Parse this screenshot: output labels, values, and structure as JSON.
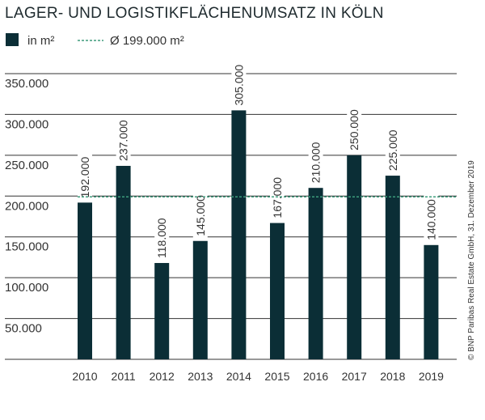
{
  "chart_data": {
    "type": "bar",
    "title": "LAGER- UND LOGISTIKFLÄCHENUMSATZ IN KÖLN",
    "legend": {
      "series_label": "in m²",
      "average_label": "Ø 199.000 m²",
      "placement": "top-left"
    },
    "categories": [
      "2010",
      "2011",
      "2012",
      "2013",
      "2014",
      "2015",
      "2016",
      "2017",
      "2018",
      "2019"
    ],
    "values": [
      192000,
      237000,
      118000,
      145000,
      305000,
      167000,
      210000,
      250000,
      225000,
      140000
    ],
    "value_labels": [
      "192.000",
      "237.000",
      "118.000",
      "145.000",
      "305.000",
      "167.000",
      "210.000",
      "250.000",
      "225.000",
      "140.000"
    ],
    "average": 199000,
    "ylim": [
      0,
      350000
    ],
    "yticks": [
      50000,
      100000,
      150000,
      200000,
      250000,
      300000,
      350000
    ],
    "ytick_labels": [
      "50.000",
      "100.000",
      "150.000",
      "200.000",
      "250.000",
      "300.000",
      "350.000"
    ],
    "grid": true,
    "source": "© BNP Paribas Real Estate GmbH, 31. Dezember 2019",
    "colors": {
      "bar": "#0b2e36",
      "average": "#3e9c7c",
      "grid": "#333333"
    }
  }
}
